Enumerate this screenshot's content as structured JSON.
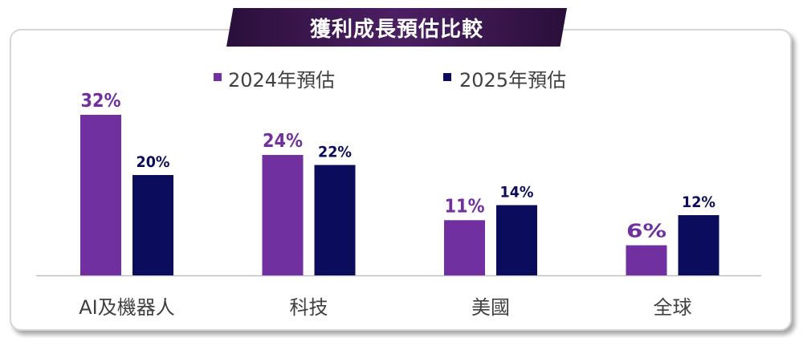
{
  "colors": {
    "2024": "#7030a0",
    "2025": "#0c0c5c"
  },
  "chart_data": {
    "type": "bar",
    "title": "獲利成長預估比較",
    "categories": [
      "AI及機器人",
      "科技",
      "美國",
      "全球"
    ],
    "series": [
      {
        "name": "2024年預估",
        "values": [
          32,
          24,
          11,
          6
        ],
        "labels": [
          "32%",
          "24%",
          "11%",
          "6%"
        ]
      },
      {
        "name": "2025年預估",
        "values": [
          20,
          22,
          14,
          12
        ],
        "labels": [
          "20%",
          "22%",
          "14%",
          "12%"
        ]
      }
    ],
    "ylim": [
      0,
      35
    ],
    "grid": false,
    "legend": "top"
  }
}
